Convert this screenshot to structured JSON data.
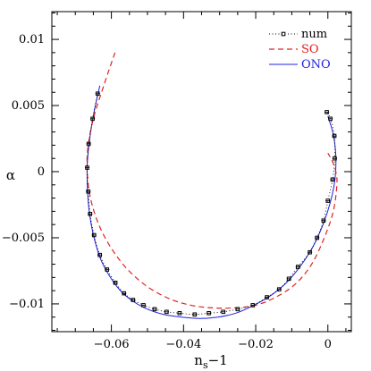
{
  "chart_data": {
    "type": "line",
    "title": "",
    "xlabel": "n_s−1",
    "xlabel_base": "n",
    "xlabel_sub": "s",
    "xlabel_tail": "−1",
    "ylabel": "α",
    "xlim": [
      -0.0765,
      0.0065
    ],
    "ylim": [
      -0.0121,
      0.0121
    ],
    "xticks": [
      -0.06,
      -0.04,
      -0.02,
      0
    ],
    "xtick_labels": [
      "−0.06",
      "−0.04",
      "−0.02",
      "0"
    ],
    "yticks": [
      0.01,
      0.005,
      0,
      -0.005,
      -0.01
    ],
    "ytick_labels": [
      "0.01",
      "0.005",
      "0",
      "−0.005",
      "−0.01"
    ],
    "legend_position": "top-right",
    "series": [
      {
        "name": "num",
        "color": "#000000",
        "style": "dotted-with-markers",
        "points": [
          [
            -0.0638,
            0.0059
          ],
          [
            -0.0652,
            0.004
          ],
          [
            -0.0663,
            0.0021
          ],
          [
            -0.0667,
            0.0003
          ],
          [
            -0.0664,
            -0.0015
          ],
          [
            -0.0659,
            -0.0032
          ],
          [
            -0.0648,
            -0.0048
          ],
          [
            -0.0632,
            -0.0063
          ],
          [
            -0.0612,
            -0.0074
          ],
          [
            -0.0589,
            -0.0084
          ],
          [
            -0.0565,
            -0.0092
          ],
          [
            -0.054,
            -0.0097
          ],
          [
            -0.0511,
            -0.0101
          ],
          [
            -0.048,
            -0.0104
          ],
          [
            -0.0447,
            -0.0106
          ],
          [
            -0.0411,
            -0.0107
          ],
          [
            -0.0369,
            -0.0108
          ],
          [
            -0.033,
            -0.0107
          ],
          [
            -0.029,
            -0.0106
          ],
          [
            -0.025,
            -0.0104
          ],
          [
            -0.0208,
            -0.0101
          ],
          [
            -0.0169,
            -0.0095
          ],
          [
            -0.0135,
            -0.0089
          ],
          [
            -0.0108,
            -0.0081
          ],
          [
            -0.0083,
            -0.0072
          ],
          [
            -0.005,
            -0.0061
          ],
          [
            -0.003,
            -0.005
          ],
          [
            -0.0012,
            -0.0037
          ],
          [
            0.0,
            -0.0022
          ],
          [
            0.0013,
            -0.0006
          ],
          [
            0.0019,
            0.001
          ],
          [
            0.0018,
            0.0027
          ],
          [
            0.0007,
            0.004
          ],
          [
            -0.0003,
            0.0045
          ]
        ]
      },
      {
        "name": "SO",
        "color": "#e02020",
        "style": "dashed",
        "points": [
          [
            -0.059,
            0.009
          ],
          [
            -0.062,
            0.0066
          ],
          [
            -0.065,
            0.004
          ],
          [
            -0.0665,
            0.0018
          ],
          [
            -0.0667,
            0.0
          ],
          [
            -0.0658,
            -0.002
          ],
          [
            -0.0635,
            -0.004
          ],
          [
            -0.06,
            -0.0058
          ],
          [
            -0.0555,
            -0.0074
          ],
          [
            -0.05,
            -0.0087
          ],
          [
            -0.044,
            -0.0096
          ],
          [
            -0.038,
            -0.0101
          ],
          [
            -0.032,
            -0.0103
          ],
          [
            -0.026,
            -0.0103
          ],
          [
            -0.02,
            -0.0101
          ],
          [
            -0.0145,
            -0.0095
          ],
          [
            -0.009,
            -0.0085
          ],
          [
            -0.0045,
            -0.007
          ],
          [
            -0.001,
            -0.005
          ],
          [
            0.0015,
            -0.003
          ],
          [
            0.0025,
            -0.001
          ],
          [
            0.0022,
            0.0
          ],
          [
            0.0012,
            0.0008
          ],
          [
            0.0,
            0.0014
          ]
        ]
      },
      {
        "name": "ONO",
        "color": "#2020e0",
        "style": "solid",
        "points": [
          [
            -0.0632,
            0.0065
          ],
          [
            -0.0648,
            0.0045
          ],
          [
            -0.066,
            0.0025
          ],
          [
            -0.0667,
            0.0005
          ],
          [
            -0.0666,
            -0.0015
          ],
          [
            -0.066,
            -0.0033
          ],
          [
            -0.0648,
            -0.005
          ],
          [
            -0.063,
            -0.0066
          ],
          [
            -0.0605,
            -0.0079
          ],
          [
            -0.0575,
            -0.009
          ],
          [
            -0.054,
            -0.0098
          ],
          [
            -0.05,
            -0.0104
          ],
          [
            -0.0455,
            -0.0108
          ],
          [
            -0.0405,
            -0.011
          ],
          [
            -0.0355,
            -0.0111
          ],
          [
            -0.0305,
            -0.011
          ],
          [
            -0.0255,
            -0.0107
          ],
          [
            -0.0205,
            -0.0101
          ],
          [
            -0.016,
            -0.0094
          ],
          [
            -0.0115,
            -0.0084
          ],
          [
            -0.0075,
            -0.0071
          ],
          [
            -0.004,
            -0.0056
          ],
          [
            -0.0012,
            -0.0039
          ],
          [
            0.0008,
            -0.0022
          ],
          [
            0.002,
            -0.0005
          ],
          [
            0.0022,
            0.0012
          ],
          [
            0.0015,
            0.0028
          ],
          [
            0.0,
            0.0042
          ]
        ]
      }
    ]
  }
}
